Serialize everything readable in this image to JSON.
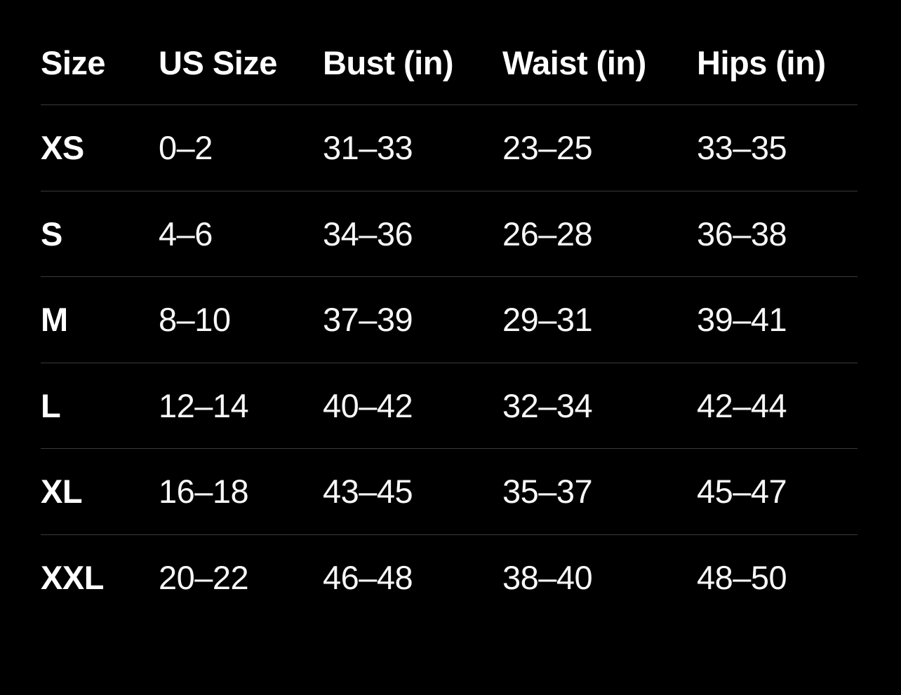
{
  "page": {
    "background_color": "#000000",
    "separator_color": "#3b3b3d",
    "header_text_color": "#ffffff",
    "data_text_color": "#f7f7f7"
  },
  "table": {
    "columns": [
      "Size",
      "US Size",
      "Bust (in)",
      "Waist (in)",
      "Hips (in)"
    ],
    "rows": [
      {
        "size": "XS",
        "us_size": "0–2",
        "bust": "31–33",
        "waist": "23–25",
        "hips": "33–35"
      },
      {
        "size": "S",
        "us_size": "4–6",
        "bust": "34–36",
        "waist": "26–28",
        "hips": "36–38"
      },
      {
        "size": "M",
        "us_size": "8–10",
        "bust": "37–39",
        "waist": "29–31",
        "hips": "39–41"
      },
      {
        "size": "L",
        "us_size": "12–14",
        "bust": "40–42",
        "waist": "32–34",
        "hips": "42–44"
      },
      {
        "size": "XL",
        "us_size": "16–18",
        "bust": "43–45",
        "waist": "35–37",
        "hips": "45–47"
      },
      {
        "size": "XXL",
        "us_size": "20–22",
        "bust": "46–48",
        "waist": "38–40",
        "hips": "48–50"
      }
    ]
  }
}
